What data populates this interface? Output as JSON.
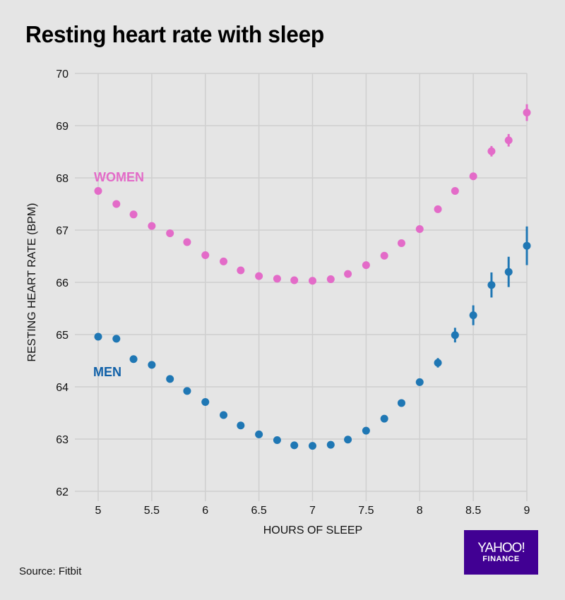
{
  "header": {
    "title": "Resting heart rate with sleep"
  },
  "footer": {
    "source": "Source: Fitbit"
  },
  "logo": {
    "main": "YAHOO!",
    "sub": "FINANCE",
    "background": "#410093"
  },
  "chart_data": {
    "type": "scatter",
    "title": "Resting heart rate with sleep",
    "xlabel": "HOURS OF SLEEP",
    "ylabel": "RESTING HEART RATE (BPM)",
    "xlim": [
      5,
      9
    ],
    "ylim": [
      62,
      70
    ],
    "grid": true,
    "x_ticks": [
      5,
      5.5,
      6,
      6.5,
      7,
      7.5,
      8,
      8.5,
      9
    ],
    "x_tick_labels": [
      "5",
      "5.5",
      "6",
      "6.5",
      "7",
      "7.5",
      "8",
      "8.5",
      "9"
    ],
    "y_ticks": [
      62,
      63,
      64,
      65,
      66,
      67,
      68,
      69,
      70
    ],
    "y_tick_labels": [
      "62",
      "63",
      "64",
      "65",
      "66",
      "67",
      "68",
      "69",
      "70"
    ],
    "x": [
      5.0,
      5.17,
      5.33,
      5.5,
      5.67,
      5.83,
      6.0,
      6.17,
      6.33,
      6.5,
      6.67,
      6.83,
      7.0,
      7.17,
      7.33,
      7.5,
      7.67,
      7.83,
      8.0,
      8.17,
      8.33,
      8.5,
      8.67,
      8.83,
      9.0
    ],
    "series": [
      {
        "name": "WOMEN",
        "color": "#e36bc8",
        "label_position": "upper-left",
        "values": [
          67.75,
          67.5,
          67.3,
          67.08,
          66.94,
          66.77,
          66.52,
          66.4,
          66.23,
          66.12,
          66.07,
          66.04,
          66.03,
          66.06,
          66.16,
          66.33,
          66.51,
          66.75,
          67.02,
          67.4,
          67.75,
          68.03,
          68.51,
          68.72,
          69.25
        ],
        "error": [
          0.02,
          0.02,
          0.02,
          0.02,
          0.02,
          0.02,
          0.02,
          0.02,
          0.02,
          0.02,
          0.02,
          0.02,
          0.02,
          0.02,
          0.02,
          0.02,
          0.02,
          0.02,
          0.03,
          0.04,
          0.05,
          0.06,
          0.1,
          0.12,
          0.16
        ]
      },
      {
        "name": "MEN",
        "color": "#1f77b4",
        "label_color": "#1060a8",
        "label_position": "left",
        "values": [
          64.96,
          64.92,
          64.53,
          64.42,
          64.15,
          63.92,
          63.71,
          63.46,
          63.26,
          63.09,
          62.98,
          62.88,
          62.87,
          62.89,
          62.99,
          63.16,
          63.39,
          63.69,
          64.09,
          64.46,
          64.99,
          65.37,
          65.95,
          66.2,
          66.7
        ],
        "error": [
          0.02,
          0.02,
          0.02,
          0.02,
          0.02,
          0.02,
          0.02,
          0.02,
          0.02,
          0.02,
          0.02,
          0.02,
          0.02,
          0.02,
          0.02,
          0.02,
          0.02,
          0.02,
          0.05,
          0.09,
          0.14,
          0.19,
          0.24,
          0.29,
          0.37
        ]
      }
    ]
  }
}
